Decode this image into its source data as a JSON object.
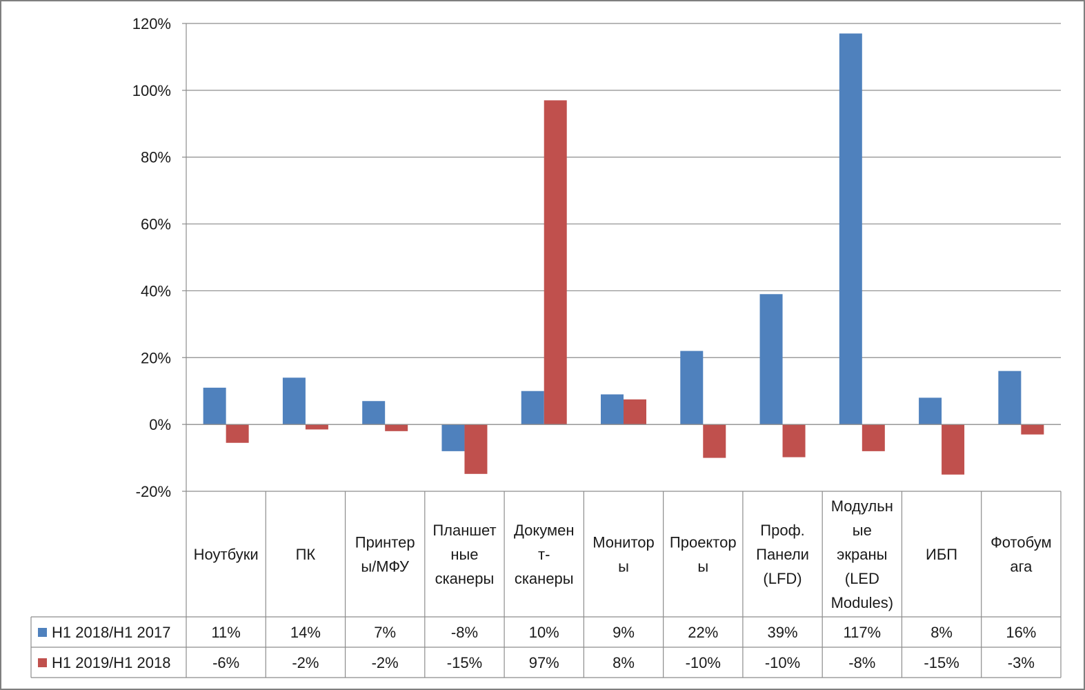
{
  "chart_data": {
    "type": "bar",
    "title": "",
    "xlabel": "",
    "ylabel": "",
    "ylim": [
      -0.2,
      1.2
    ],
    "yticks": [
      -0.2,
      0,
      0.2,
      0.4,
      0.6,
      0.8,
      1.0,
      1.2
    ],
    "ytick_labels": [
      "-20%",
      "0%",
      "20%",
      "40%",
      "60%",
      "80%",
      "100%",
      "120%"
    ],
    "grid": true,
    "legend": "data-table-left",
    "categories": [
      [
        "Ноутбуки"
      ],
      [
        "ПК"
      ],
      [
        "Принтер",
        "ы/МФУ"
      ],
      [
        "Планшет",
        "ные",
        "сканеры"
      ],
      [
        "Докумен",
        "т-",
        "сканеры"
      ],
      [
        "Монитор",
        "ы"
      ],
      [
        "Проектор",
        "ы"
      ],
      [
        "Проф.",
        "Панели",
        "(LFD)"
      ],
      [
        "Модульн",
        "ые",
        "экраны",
        "(LED",
        "Modules)"
      ],
      [
        "ИБП"
      ],
      [
        "Фотобум",
        "ага"
      ]
    ],
    "series": [
      {
        "name": "H1 2018/H1 2017",
        "color": "#4F81BD",
        "values": [
          0.11,
          0.14,
          0.07,
          -0.08,
          0.1,
          0.09,
          0.22,
          0.39,
          1.17,
          0.08,
          0.16
        ],
        "labels": [
          "11%",
          "14%",
          "7%",
          "-8%",
          "10%",
          "9%",
          "22%",
          "39%",
          "117%",
          "8%",
          "16%"
        ]
      },
      {
        "name": "H1 2019/H1 2018",
        "color": "#C0504D",
        "values": [
          -0.055,
          -0.015,
          -0.02,
          -0.148,
          0.97,
          0.075,
          -0.1,
          -0.098,
          -0.08,
          -0.15,
          -0.03
        ],
        "labels": [
          "-6%",
          "-2%",
          "-2%",
          "-15%",
          "97%",
          "8%",
          "-10%",
          "-10%",
          "-8%",
          "-15%",
          "-3%"
        ]
      }
    ]
  }
}
